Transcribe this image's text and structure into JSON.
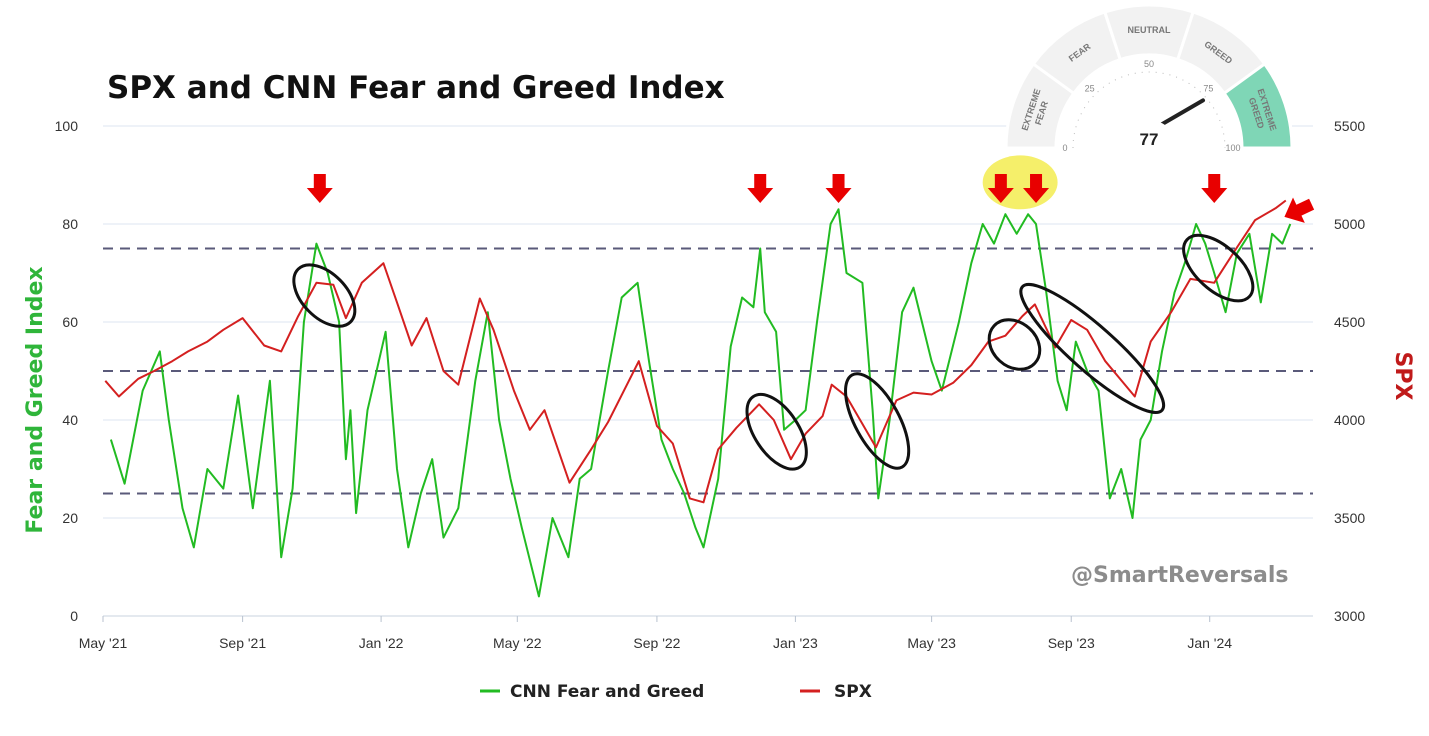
{
  "chart_data": {
    "type": "line",
    "title": "SPX and CNN Fear and Greed Index",
    "ylabel_left": "Fear and Greed Index",
    "ylabel_right": "SPX",
    "ylim_left": [
      0,
      100
    ],
    "ylim_right": [
      3000,
      5500
    ],
    "yticks_left": [
      "0",
      "20",
      "40",
      "60",
      "80",
      "100"
    ],
    "yticks_right": [
      "3000",
      "3500",
      "4000",
      "4500",
      "5000",
      "5500"
    ],
    "x_tick_labels": [
      "May '21",
      "Sep '21",
      "Jan '22",
      "May '22",
      "Sep '22",
      "Jan '23",
      "May '23",
      "Sep '23",
      "Jan '24"
    ],
    "x_tick_dates": [
      "2021-05",
      "2021-09",
      "2022-01",
      "2022-05",
      "2022-09",
      "2023-01",
      "2023-05",
      "2023-09",
      "2024-01"
    ],
    "reference_lines_left": [
      25,
      50,
      75
    ],
    "grid": true,
    "legend": "bottom-center",
    "colors": {
      "fear_greed": "#22bb22",
      "spx": "#d42020",
      "reference": "#5a5a7a",
      "grid": "#dde6f2",
      "highlight": "#f5ef6a",
      "arrow": "#e80000",
      "gauge_extreme_greed": "#7fd6b6"
    },
    "series": [
      {
        "name": "CNN Fear and Greed",
        "axis": "left",
        "points": [
          [
            "2021-05-08",
            36
          ],
          [
            "2021-05-20",
            27
          ],
          [
            "2021-06-05",
            46
          ],
          [
            "2021-06-20",
            54
          ],
          [
            "2021-06-28",
            40
          ],
          [
            "2021-07-10",
            22
          ],
          [
            "2021-07-20",
            14
          ],
          [
            "2021-08-01",
            30
          ],
          [
            "2021-08-15",
            26
          ],
          [
            "2021-08-28",
            45
          ],
          [
            "2021-09-10",
            22
          ],
          [
            "2021-09-25",
            48
          ],
          [
            "2021-10-05",
            12
          ],
          [
            "2021-10-15",
            26
          ],
          [
            "2021-10-25",
            60
          ],
          [
            "2021-11-05",
            76
          ],
          [
            "2021-11-15",
            70
          ],
          [
            "2021-11-25",
            60
          ],
          [
            "2021-12-01",
            32
          ],
          [
            "2021-12-05",
            42
          ],
          [
            "2021-12-10",
            21
          ],
          [
            "2021-12-20",
            42
          ],
          [
            "2022-01-05",
            58
          ],
          [
            "2022-01-15",
            30
          ],
          [
            "2022-01-25",
            14
          ],
          [
            "2022-02-05",
            25
          ],
          [
            "2022-02-15",
            32
          ],
          [
            "2022-02-25",
            16
          ],
          [
            "2022-03-10",
            22
          ],
          [
            "2022-03-25",
            48
          ],
          [
            "2022-04-05",
            62
          ],
          [
            "2022-04-15",
            40
          ],
          [
            "2022-04-25",
            28
          ],
          [
            "2022-05-05",
            18
          ],
          [
            "2022-05-20",
            4
          ],
          [
            "2022-06-01",
            20
          ],
          [
            "2022-06-15",
            12
          ],
          [
            "2022-06-25",
            28
          ],
          [
            "2022-07-05",
            30
          ],
          [
            "2022-07-20",
            50
          ],
          [
            "2022-08-01",
            65
          ],
          [
            "2022-08-15",
            68
          ],
          [
            "2022-08-25",
            52
          ],
          [
            "2022-09-05",
            36
          ],
          [
            "2022-09-15",
            30
          ],
          [
            "2022-09-25",
            25
          ],
          [
            "2022-10-05",
            18
          ],
          [
            "2022-10-12",
            14
          ],
          [
            "2022-10-25",
            28
          ],
          [
            "2022-11-05",
            55
          ],
          [
            "2022-11-15",
            65
          ],
          [
            "2022-11-25",
            63
          ],
          [
            "2022-12-01",
            75
          ],
          [
            "2022-12-05",
            62
          ],
          [
            "2022-12-15",
            58
          ],
          [
            "2022-12-22",
            38
          ],
          [
            "2023-01-01",
            40
          ],
          [
            "2023-01-10",
            42
          ],
          [
            "2023-01-20",
            60
          ],
          [
            "2023-02-01",
            80
          ],
          [
            "2023-02-08",
            83
          ],
          [
            "2023-02-15",
            70
          ],
          [
            "2023-03-01",
            68
          ],
          [
            "2023-03-10",
            42
          ],
          [
            "2023-03-15",
            24
          ],
          [
            "2023-03-25",
            40
          ],
          [
            "2023-04-05",
            62
          ],
          [
            "2023-04-15",
            67
          ],
          [
            "2023-05-01",
            52
          ],
          [
            "2023-05-10",
            46
          ],
          [
            "2023-05-25",
            60
          ],
          [
            "2023-06-05",
            72
          ],
          [
            "2023-06-15",
            80
          ],
          [
            "2023-06-25",
            76
          ],
          [
            "2023-07-05",
            82
          ],
          [
            "2023-07-15",
            78
          ],
          [
            "2023-07-25",
            82
          ],
          [
            "2023-08-01",
            80
          ],
          [
            "2023-08-10",
            66
          ],
          [
            "2023-08-20",
            48
          ],
          [
            "2023-08-28",
            42
          ],
          [
            "2023-09-05",
            56
          ],
          [
            "2023-09-15",
            50
          ],
          [
            "2023-09-25",
            46
          ],
          [
            "2023-10-05",
            24
          ],
          [
            "2023-10-15",
            30
          ],
          [
            "2023-10-25",
            20
          ],
          [
            "2023-11-01",
            36
          ],
          [
            "2023-11-10",
            40
          ],
          [
            "2023-11-20",
            54
          ],
          [
            "2023-12-01",
            66
          ],
          [
            "2023-12-10",
            72
          ],
          [
            "2023-12-20",
            80
          ],
          [
            "2023-12-28",
            76
          ],
          [
            "2024-01-05",
            70
          ],
          [
            "2024-01-15",
            62
          ],
          [
            "2024-01-25",
            74
          ],
          [
            "2024-02-05",
            78
          ],
          [
            "2024-02-15",
            64
          ],
          [
            "2024-02-25",
            78
          ],
          [
            "2024-03-05",
            76
          ],
          [
            "2024-03-12",
            80
          ]
        ]
      },
      {
        "name": "SPX",
        "axis": "right",
        "points": [
          [
            "2021-05-03",
            4200
          ],
          [
            "2021-05-15",
            4120
          ],
          [
            "2021-06-01",
            4210
          ],
          [
            "2021-06-15",
            4250
          ],
          [
            "2021-07-01",
            4300
          ],
          [
            "2021-07-15",
            4350
          ],
          [
            "2021-08-01",
            4400
          ],
          [
            "2021-08-15",
            4460
          ],
          [
            "2021-09-01",
            4520
          ],
          [
            "2021-09-20",
            4380
          ],
          [
            "2021-10-05",
            4350
          ],
          [
            "2021-10-20",
            4530
          ],
          [
            "2021-11-05",
            4700
          ],
          [
            "2021-11-20",
            4690
          ],
          [
            "2021-12-01",
            4520
          ],
          [
            "2021-12-15",
            4700
          ],
          [
            "2022-01-03",
            4800
          ],
          [
            "2022-01-15",
            4600
          ],
          [
            "2022-01-28",
            4380
          ],
          [
            "2022-02-10",
            4520
          ],
          [
            "2022-02-25",
            4250
          ],
          [
            "2022-03-10",
            4180
          ],
          [
            "2022-03-29",
            4620
          ],
          [
            "2022-04-10",
            4460
          ],
          [
            "2022-04-28",
            4150
          ],
          [
            "2022-05-12",
            3950
          ],
          [
            "2022-05-25",
            4050
          ],
          [
            "2022-06-16",
            3680
          ],
          [
            "2022-07-05",
            3850
          ],
          [
            "2022-07-20",
            3990
          ],
          [
            "2022-08-16",
            4300
          ],
          [
            "2022-09-01",
            3970
          ],
          [
            "2022-09-15",
            3880
          ],
          [
            "2022-09-30",
            3600
          ],
          [
            "2022-10-12",
            3580
          ],
          [
            "2022-10-25",
            3850
          ],
          [
            "2022-11-10",
            3960
          ],
          [
            "2022-11-30",
            4080
          ],
          [
            "2022-12-13",
            4000
          ],
          [
            "2022-12-28",
            3800
          ],
          [
            "2023-01-10",
            3930
          ],
          [
            "2023-01-25",
            4020
          ],
          [
            "2023-02-02",
            4180
          ],
          [
            "2023-02-15",
            4120
          ],
          [
            "2023-03-01",
            3980
          ],
          [
            "2023-03-13",
            3860
          ],
          [
            "2023-03-31",
            4100
          ],
          [
            "2023-04-15",
            4140
          ],
          [
            "2023-05-01",
            4130
          ],
          [
            "2023-05-20",
            4190
          ],
          [
            "2023-06-05",
            4280
          ],
          [
            "2023-06-20",
            4400
          ],
          [
            "2023-07-05",
            4430
          ],
          [
            "2023-07-20",
            4530
          ],
          [
            "2023-07-31",
            4590
          ],
          [
            "2023-08-18",
            4370
          ],
          [
            "2023-09-01",
            4510
          ],
          [
            "2023-09-15",
            4460
          ],
          [
            "2023-10-01",
            4300
          ],
          [
            "2023-10-27",
            4120
          ],
          [
            "2023-11-10",
            4400
          ],
          [
            "2023-11-28",
            4550
          ],
          [
            "2023-12-15",
            4720
          ],
          [
            "2024-01-05",
            4700
          ],
          [
            "2024-01-25",
            4880
          ],
          [
            "2024-02-10",
            5020
          ],
          [
            "2024-02-28",
            5080
          ],
          [
            "2024-03-08",
            5120
          ]
        ]
      }
    ],
    "annotations": {
      "arrows": [
        "2021-11-08",
        "2022-12-01",
        "2023-02-08",
        "2023-07-01",
        "2023-08-01",
        "2024-01-05",
        "2024-03-18"
      ],
      "ellipses": [
        {
          "from": "2021-10-20",
          "to": "2021-12-05",
          "axis": "right",
          "low": 4500,
          "high": 4770
        },
        {
          "from": "2022-11-25",
          "to": "2023-01-05",
          "axis": "right",
          "low": 3760,
          "high": 4120
        },
        {
          "from": "2023-02-20",
          "to": "2023-04-05",
          "axis": "right",
          "low": 3760,
          "high": 4230
        },
        {
          "from": "2023-06-25",
          "to": "2023-07-31",
          "axis": "right",
          "low": 4290,
          "high": 4480
        },
        {
          "from": "2023-07-20",
          "to": "2023-11-20",
          "axis": "right",
          "low": 4050,
          "high": 4680
        },
        {
          "from": "2023-12-12",
          "to": "2024-02-05",
          "axis": "right",
          "low": 4630,
          "high": 4920
        }
      ],
      "highlight": {
        "from": "2023-06-15",
        "to": "2023-08-20",
        "axis": "left",
        "low": 83,
        "high": 94
      }
    },
    "gauge": {
      "value": "77",
      "segments": [
        "EXTREME FEAR",
        "FEAR",
        "NEUTRAL",
        "GREED",
        "EXTREME GREED"
      ],
      "scale_labels": [
        "0",
        "25",
        "50",
        "75",
        "100"
      ]
    },
    "legend_entries": [
      "CNN Fear and Greed",
      "SPX"
    ],
    "watermark": "@SmartReversals"
  }
}
